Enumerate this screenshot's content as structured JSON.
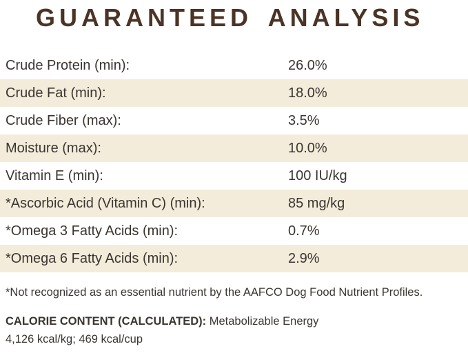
{
  "title": "GUARANTEED ANALYSIS",
  "colors": {
    "title_brown": "#4b3425",
    "row_shade_beige": "#f3ecdb",
    "body_text": "#3a3530"
  },
  "analysis_rows": [
    {
      "label": "Crude Protein (min):",
      "value": "26.0%"
    },
    {
      "label": "Crude Fat (min):",
      "value": "18.0%"
    },
    {
      "label": "Crude Fiber (max):",
      "value": "3.5%"
    },
    {
      "label": "Moisture (max):",
      "value": "10.0%"
    },
    {
      "label": "Vitamin E (min):",
      "value": "100 IU/kg"
    },
    {
      "label": "*Ascorbic Acid (Vitamin C) (min):",
      "value": "85 mg/kg"
    },
    {
      "label": "*Omega 3 Fatty Acids (min):",
      "value": "0.7%"
    },
    {
      "label": "*Omega 6 Fatty Acids (min):",
      "value": "2.9%"
    }
  ],
  "footnote": "*Not recognized as an essential nutrient by the AAFCO Dog Food Nutrient Profiles.",
  "calorie_content": {
    "heading": "CALORIE CONTENT (CALCULATED):",
    "description": "Metabolizable Energy",
    "values_line": "4,126 kcal/kg; 469 kcal/cup"
  }
}
